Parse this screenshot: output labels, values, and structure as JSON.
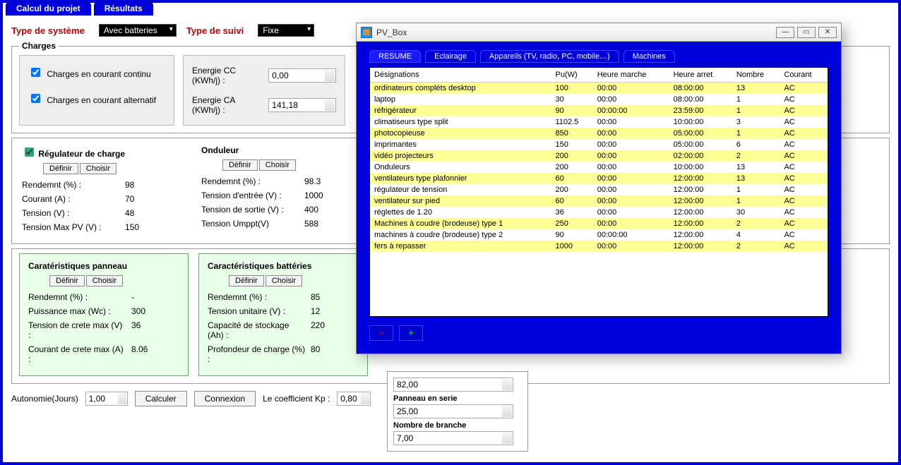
{
  "main_tabs": {
    "calcul": "Calcul du projet",
    "resultats": "Résultats"
  },
  "top": {
    "type_systeme_label": "Type de système",
    "type_systeme_value": "Avec batteries",
    "type_suivi_label": "Type de suivi",
    "type_suivi_value": "Fixe"
  },
  "charges": {
    "legend": "Charges",
    "cc_label": "Charges en courant continu",
    "ca_label": "Charges en courant alternatif",
    "energie_cc_label": "Energie CC (KWh/j) :",
    "energie_cc_value": "0,00",
    "energie_ca_label": "Energie CA (KWh/j) :",
    "energie_ca_value": "141,18"
  },
  "regulateur": {
    "title": "Régulateur de charge",
    "definir": "Définir",
    "choisir": "Choisir",
    "rows": [
      {
        "k": "Rendemnt (%) :",
        "v": "98"
      },
      {
        "k": "Courant (A) :",
        "v": "70"
      },
      {
        "k": "Tension (V) :",
        "v": "48"
      },
      {
        "k": "Tension Max PV (V) :",
        "v": "150"
      }
    ]
  },
  "onduleur": {
    "title": "Onduleur",
    "definir": "Définir",
    "choisir": "Choisir",
    "rows": [
      {
        "k": "Rendemnt (%) :",
        "v": "98.3"
      },
      {
        "k": "Tension d'entrée (V) :",
        "v": "1000"
      },
      {
        "k": "Tension de sortie (V) :",
        "v": "400"
      },
      {
        "k": "Tension Umppt(V)",
        "v": "588"
      }
    ]
  },
  "panneau": {
    "title": "Caratéristiques panneau",
    "definir": "Définir",
    "choisir": "Choisir",
    "rows": [
      {
        "k": "Rendemnt (%) :",
        "v": "-"
      },
      {
        "k": "Puissance max (Wc) :",
        "v": "300"
      },
      {
        "k": "Tension de crete max (V) :",
        "v": "36"
      },
      {
        "k": "Courant de crete max (A) :",
        "v": "8.06"
      }
    ]
  },
  "batteries": {
    "title": "Caractéristiques battéries",
    "definir": "Définir",
    "choisir": "Choisir",
    "rows": [
      {
        "k": "Rendemnt (%) :",
        "v": "85"
      },
      {
        "k": "Tension unitaire (V) :",
        "v": "12"
      },
      {
        "k": "Capacité de stockage (Ah) :",
        "v": "220"
      },
      {
        "k": "Profondeur de charge (%) :",
        "v": "80"
      }
    ]
  },
  "bottom": {
    "autonomie_label": "Autonomie(Jours)",
    "autonomie_value": "1,00",
    "calculer": "Calculer",
    "connexion": "Connexion",
    "kp_label": "Le coefficient Kp :",
    "kp_value": "0,80"
  },
  "right_stack": {
    "field1": {
      "label": "",
      "value": "82,00"
    },
    "field2": {
      "label": "Panneau en serie",
      "value": "25,00"
    },
    "field3": {
      "label": "Nombre de branche",
      "value": "7,00"
    }
  },
  "popup": {
    "title": "PV_Box",
    "tabs": {
      "resume": "RESUME",
      "eclairage": "Eclairage",
      "appareils": "Appareils (TV, radio, PC, mobile…)",
      "machines": "Machines"
    },
    "columns": [
      "Désignations",
      "Pu(W)",
      "Heure marche",
      "Heure arret",
      "Nombre",
      "Courant"
    ],
    "rows": [
      [
        "ordinateurs compléts desktop",
        "100",
        "00:00",
        "08:00:00",
        "13",
        "AC"
      ],
      [
        "laptop",
        "30",
        "00:00",
        "08:00:00",
        "1",
        "AC"
      ],
      [
        "réfrigérateur",
        "90",
        "00:00:00",
        "23:59:00",
        "1",
        "AC"
      ],
      [
        "climatiseurs type split",
        "1102.5",
        "00:00",
        "10:00:00",
        "3",
        "AC"
      ],
      [
        "photocopieuse",
        "850",
        "00:00",
        "05:00:00",
        "1",
        "AC"
      ],
      [
        "imprimantes",
        "150",
        "00:00",
        "05:00:00",
        "6",
        "AC"
      ],
      [
        "vidéo projecteurs",
        "200",
        "00:00",
        "02:00:00",
        "2",
        "AC"
      ],
      [
        "Onduleurs",
        "200",
        "00:00",
        "10:00:00",
        "13",
        "AC"
      ],
      [
        "ventilateurs type plafonnier",
        "60",
        "00:00",
        "12:00:00",
        "13",
        "AC"
      ],
      [
        "régulateur de tension",
        "200",
        "00:00",
        "12:00:00",
        "1",
        "AC"
      ],
      [
        "ventilateur sur pied",
        "60",
        "00:00",
        "12:00:00",
        "1",
        "AC"
      ],
      [
        "réglettes de 1.20",
        "36",
        "00:00",
        "12:00:00",
        "30",
        "AC"
      ],
      [
        "Machines à coudre (brodeuse) type 1",
        "250",
        "00:00",
        "12:00:00",
        "2",
        "AC"
      ],
      [
        "machines à coudre (brodeuse) type 2",
        "90",
        "00:00:00",
        "12:00:00",
        "4",
        "AC"
      ],
      [
        "fers à repasser",
        "1000",
        "00:00",
        "12:00:00",
        "2",
        "AC"
      ]
    ],
    "alt_color": "#ffff99",
    "row_bg": "#ffffff"
  },
  "colors": {
    "frame": "#0000dd",
    "green_panel_bg": "#e9ffe9",
    "green_panel_border": "#66aa66",
    "red_label": "#c00000"
  }
}
